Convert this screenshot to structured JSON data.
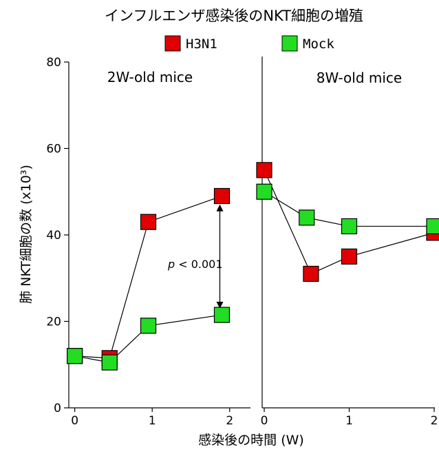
{
  "chart_data": {
    "type": "line",
    "title": "インフルエンザ感染後のNKT細胞の増殖",
    "xlabel": "感染後の時間 (W)",
    "ylabel": "肺 NKT細胞の数 (x10³)",
    "ylim": [
      0,
      80
    ],
    "yticks": [
      "0",
      "20",
      "40",
      "60",
      "80"
    ],
    "legend": {
      "placement": "top",
      "entries": [
        {
          "label": "H3N1",
          "color": "#e00000"
        },
        {
          "label": "Mock",
          "color": "#22dd22"
        }
      ]
    },
    "panels": [
      {
        "label": "2W-old mice",
        "xlim": [
          -0.05,
          2.1
        ],
        "xticks": [
          "0",
          "1",
          "2"
        ],
        "series": [
          {
            "name": "H3N1",
            "color": "#e00000",
            "points": [
              [
                0,
                12
              ],
              [
                0.45,
                11.5
              ],
              [
                0.95,
                43
              ],
              [
                1.9,
                49
              ]
            ]
          },
          {
            "name": "Mock",
            "color": "#22dd22",
            "points": [
              [
                0,
                12
              ],
              [
                0.45,
                10.5
              ],
              [
                0.95,
                19
              ],
              [
                1.9,
                21.5
              ]
            ]
          }
        ],
        "annotation": {
          "text_italic": "p",
          "text": "< 0.001",
          "x": 1.9,
          "y_from": 48,
          "y_to": 22
        }
      },
      {
        "label": "8W-old mice",
        "xlim": [
          0,
          2
        ],
        "xticks": [
          "0",
          "1",
          "2"
        ],
        "series": [
          {
            "name": "H3N1",
            "color": "#e00000",
            "points": [
              [
                0,
                55
              ],
              [
                0.55,
                31
              ],
              [
                1,
                35
              ],
              [
                2,
                40.5
              ]
            ]
          },
          {
            "name": "Mock",
            "color": "#22dd22",
            "points": [
              [
                0,
                50
              ],
              [
                0.5,
                44
              ],
              [
                1,
                42
              ],
              [
                2,
                42
              ]
            ]
          }
        ]
      }
    ]
  }
}
